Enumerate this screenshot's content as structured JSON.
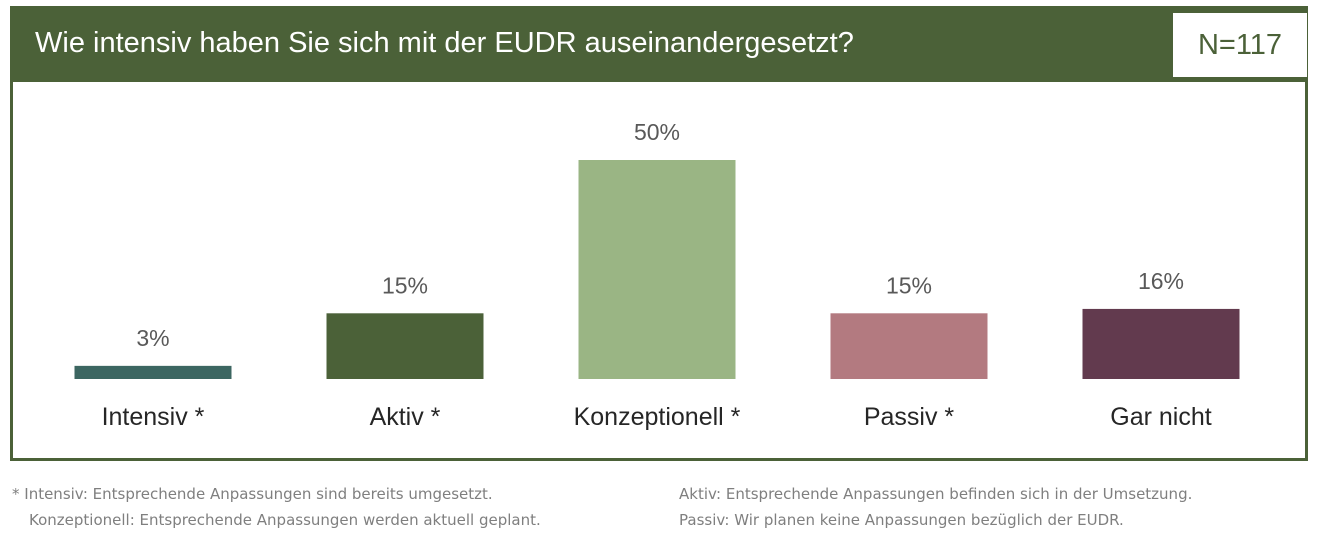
{
  "header": {
    "title": "Wie intensiv haben Sie sich mit der EUDR auseinandergesetzt?",
    "sample_size": "N=117"
  },
  "colors": {
    "frame": "#4b6138",
    "header_bg": "#4b6138",
    "header_text": "#ffffff"
  },
  "chart_data": {
    "type": "bar",
    "categories": [
      "Intensiv *",
      "Aktiv *",
      "Konzeptionell *",
      "Passiv *",
      "Gar nicht"
    ],
    "values": [
      3,
      15,
      50,
      15,
      16
    ],
    "value_labels": [
      "3%",
      "15%",
      "50%",
      "15%",
      "16%"
    ],
    "colors": [
      "#3c6661",
      "#4b6138",
      "#9ab584",
      "#b37a80",
      "#623a4e"
    ],
    "unit": "%",
    "ylim": [
      0,
      50
    ],
    "grid": false,
    "legend": "none"
  },
  "footnotes": {
    "intensiv": "* Intensiv: Entsprechende Anpassungen sind bereits umgesetzt.",
    "konzeptionell": "Konzeptionell: Entsprechende Anpassungen werden aktuell geplant.",
    "aktiv": "Aktiv: Entsprechende Anpassungen befinden sich in der Umsetzung.",
    "passiv": "Passiv: Wir planen keine Anpassungen bezüglich der EUDR."
  }
}
